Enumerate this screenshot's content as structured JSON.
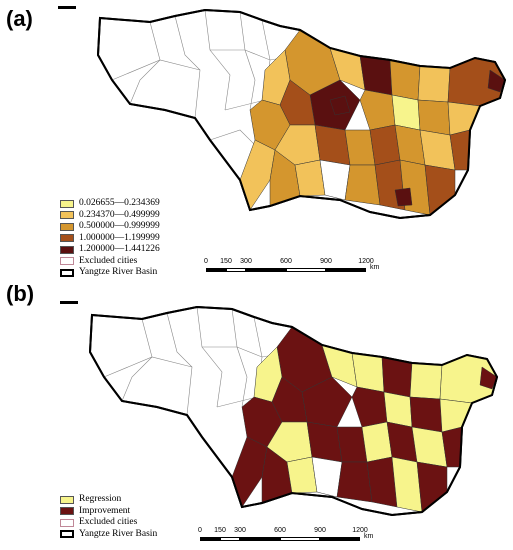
{
  "panel_a": {
    "label": "(a)",
    "legend": [
      {
        "label": "0.026655—0.234369",
        "color": "#f7f48c"
      },
      {
        "label": "0.234370—0.499999",
        "color": "#f2c25a"
      },
      {
        "label": "0.500000—0.999999",
        "color": "#d4962e"
      },
      {
        "label": "1.000000—1.199999",
        "color": "#a44f1a"
      },
      {
        "label": "1.200000—1.441226",
        "color": "#5a1010"
      },
      {
        "label": "Excluded cities",
        "color": "#ffffff"
      },
      {
        "label": "Yangtze River Basin",
        "color": "#ffffff"
      }
    ],
    "scale": {
      "ticks": [
        "0",
        "150",
        "300",
        "600",
        "900",
        "1200"
      ],
      "unit": "km"
    }
  },
  "panel_b": {
    "label": "(b)",
    "legend": [
      {
        "label": "Regression",
        "color": "#f7f48c"
      },
      {
        "label": "Improvement",
        "color": "#6b1212"
      },
      {
        "label": "Excluded cities",
        "color": "#ffffff"
      },
      {
        "label": "Yangtze River Basin",
        "color": "#ffffff"
      }
    ],
    "scale": {
      "ticks": [
        "0",
        "150",
        "300",
        "600",
        "900",
        "1200"
      ],
      "unit": "km"
    }
  },
  "colors": {
    "outline": "#000000",
    "excluded_border": "#c08898",
    "class1": "#f7f48c",
    "class2": "#f2c25a",
    "class3": "#d4962e",
    "class4": "#a44f1a",
    "class5": "#5a1010",
    "regression": "#f7f48c",
    "improvement": "#6b1212"
  }
}
